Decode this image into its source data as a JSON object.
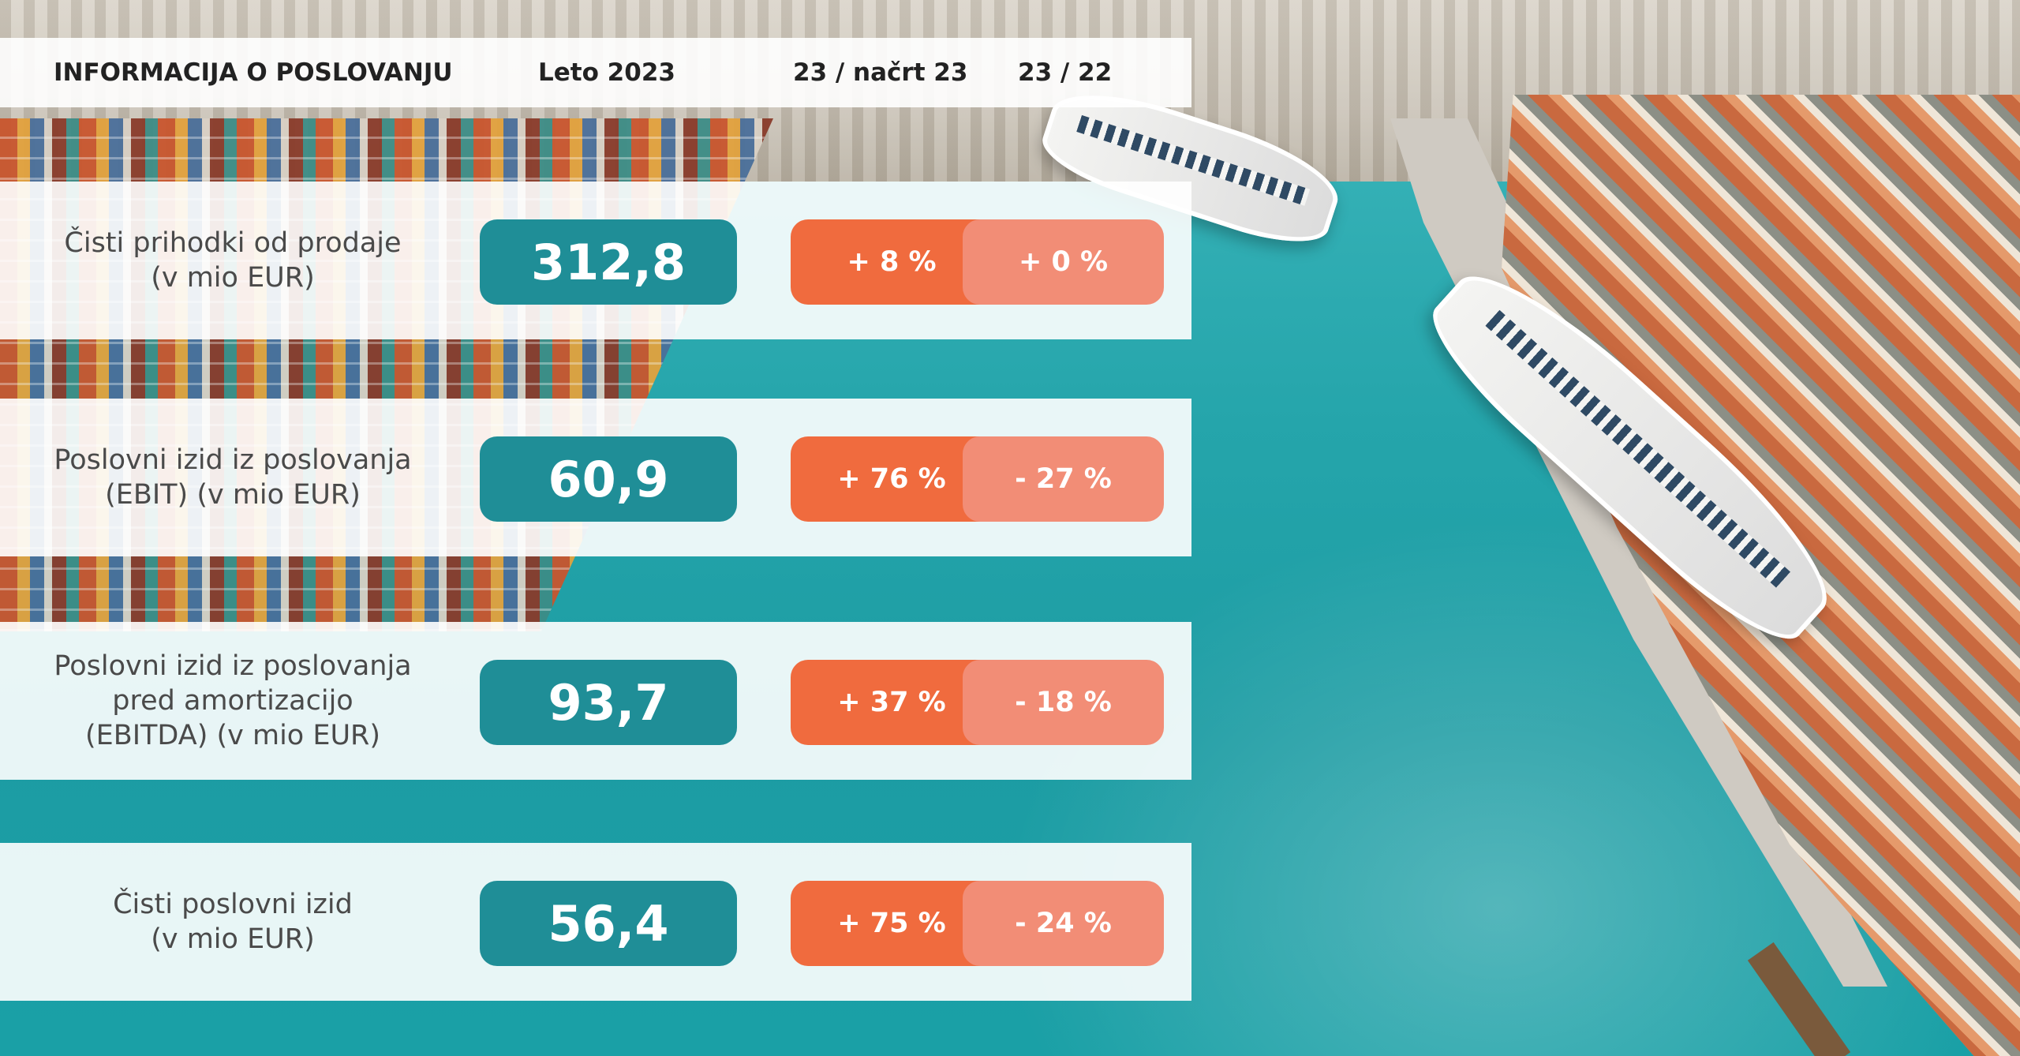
{
  "header": {
    "title": "INFORMACIJA O POSLOVANJU",
    "year": "Leto 2023",
    "col_plan": "23 / načrt 23",
    "col_prev": "23 / 22"
  },
  "rows": [
    {
      "label_lines": [
        "Čisti prihodki od prodaje",
        "(v mio EUR)"
      ],
      "value": "312,8",
      "vs_plan": "+ 8 %",
      "vs_prev": "+ 0 %"
    },
    {
      "label_lines": [
        "Poslovni izid iz poslovanja",
        "(EBIT) (v mio EUR)"
      ],
      "value": "60,9",
      "vs_plan": "+ 76 %",
      "vs_prev": "- 27 %"
    },
    {
      "label_lines": [
        "Poslovni izid iz poslovanja",
        "pred amortizacijo",
        "(EBITDA) (v mio EUR)"
      ],
      "value": "93,7",
      "vs_plan": "+ 37 %",
      "vs_prev": "- 18 %"
    },
    {
      "label_lines": [
        "Čisti poslovni izid",
        "(v mio EUR)"
      ],
      "value": "56,4",
      "vs_plan": "+ 75 %",
      "vs_prev": "- 24 %"
    }
  ],
  "colors": {
    "value_box": "#1f8e97",
    "vs_plan_box": "#f06b3e",
    "vs_prev_box": "#f28d76",
    "panel": "#ffffff"
  }
}
